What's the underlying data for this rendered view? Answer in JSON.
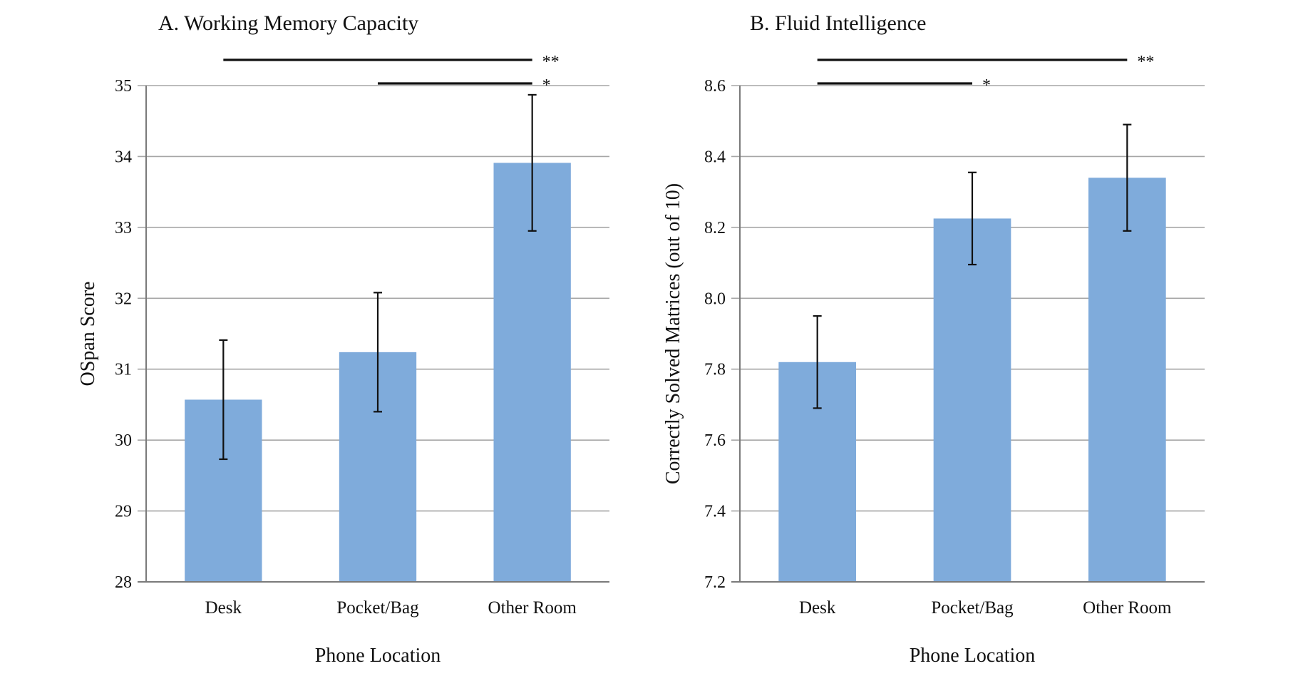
{
  "chart_data": [
    {
      "type": "bar",
      "title": "A. Working Memory Capacity",
      "xlabel": "Phone Location",
      "ylabel": "OSpan Score",
      "categories": [
        "Desk",
        "Pocket/Bag",
        "Other Room"
      ],
      "values": [
        30.57,
        31.24,
        33.91
      ],
      "errors": [
        0.84,
        0.84,
        0.96
      ],
      "ylim": [
        28,
        35
      ],
      "yticks": [
        "28",
        "29",
        "30",
        "31",
        "32",
        "33",
        "34",
        "35"
      ],
      "grid": true,
      "bar_color": "#7fabdb",
      "significance": [
        {
          "from": "Desk",
          "to": "Other Room",
          "label": "**"
        },
        {
          "from": "Pocket/Bag",
          "to": "Other Room",
          "label": "*"
        }
      ]
    },
    {
      "type": "bar",
      "title": "B. Fluid Intelligence",
      "xlabel": "Phone Location",
      "ylabel": "Correctly Solved Matrices (out of 10)",
      "categories": [
        "Desk",
        "Pocket/Bag",
        "Other Room"
      ],
      "values": [
        7.82,
        8.225,
        8.34
      ],
      "errors": [
        0.13,
        0.13,
        0.15
      ],
      "ylim": [
        7.2,
        8.6
      ],
      "yticks": [
        "7.2",
        "7.4",
        "7.6",
        "7.8",
        "8.0",
        "8.2",
        "8.4",
        "8.6"
      ],
      "grid": true,
      "bar_color": "#7fabdb",
      "significance": [
        {
          "from": "Desk",
          "to": "Other Room",
          "label": "**"
        },
        {
          "from": "Desk",
          "to": "Pocket/Bag",
          "label": "*"
        }
      ]
    }
  ]
}
